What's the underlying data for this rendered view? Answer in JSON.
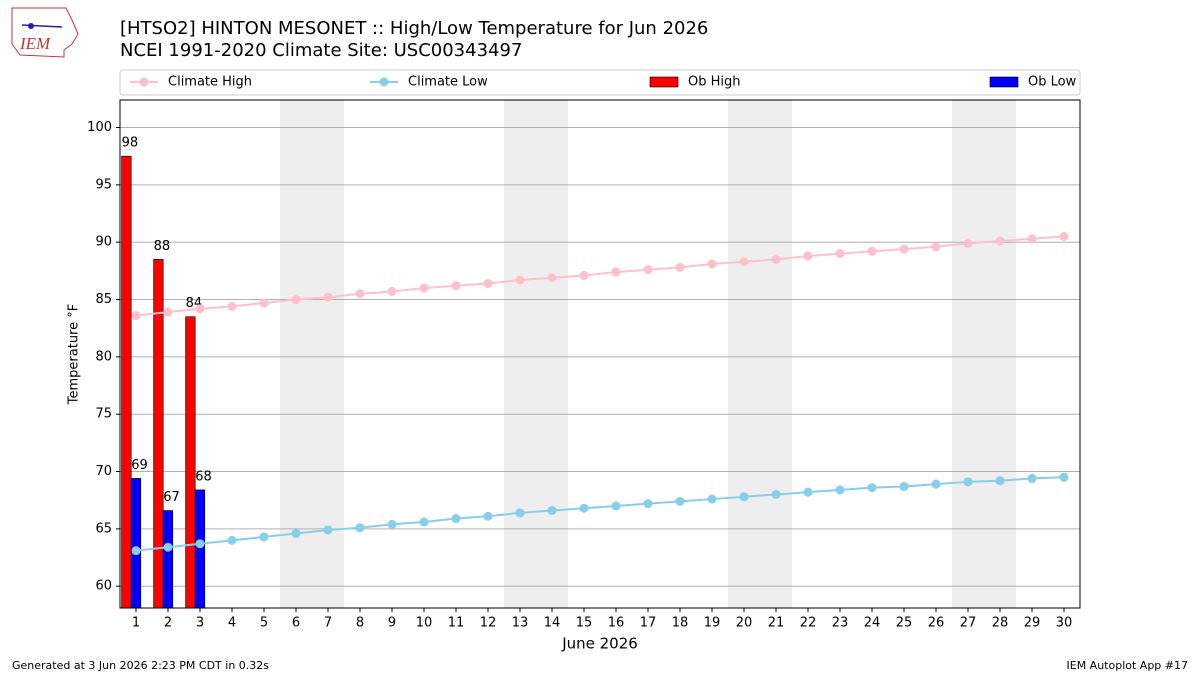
{
  "logo": "IEM",
  "footer_left": "Generated at 3 Jun 2026 2:23 PM CDT in 0.32s",
  "footer_right": "IEM Autoplot App #17",
  "chart_data": {
    "type": "bar",
    "title": "[HTSO2] HINTON MESONET :: High/Low Temperature for Jun 2026",
    "subtitle": "NCEI 1991-2020 Climate Site: USC00343497",
    "ylabel": "Temperature °F",
    "xlabel": "June 2026",
    "x": [
      1,
      2,
      3,
      4,
      5,
      6,
      7,
      8,
      9,
      10,
      11,
      12,
      13,
      14,
      15,
      16,
      17,
      18,
      19,
      20,
      21,
      22,
      23,
      24,
      25,
      26,
      27,
      28,
      29,
      30
    ],
    "xlim": [
      0.5,
      30.5
    ],
    "xticks": [
      1,
      2,
      3,
      4,
      5,
      6,
      7,
      8,
      9,
      10,
      11,
      12,
      13,
      14,
      15,
      16,
      17,
      18,
      19,
      20,
      21,
      22,
      23,
      24,
      25,
      26,
      27,
      28,
      29,
      30
    ],
    "ylim": [
      58.1,
      102.4
    ],
    "yticks": [
      60,
      65,
      70,
      75,
      80,
      85,
      90,
      95,
      100
    ],
    "grid": true,
    "legend": "top",
    "series": [
      {
        "name": "Climate High",
        "kind": "line",
        "color": "#ffc0cb",
        "values": [
          83.6,
          83.9,
          84.2,
          84.4,
          84.7,
          85.0,
          85.2,
          85.5,
          85.7,
          86.0,
          86.2,
          86.4,
          86.7,
          86.9,
          87.1,
          87.4,
          87.6,
          87.8,
          88.1,
          88.3,
          88.5,
          88.8,
          89.0,
          89.2,
          89.4,
          89.6,
          89.9,
          90.1,
          90.3,
          90.5
        ]
      },
      {
        "name": "Climate Low",
        "kind": "line",
        "color": "#87ceeb",
        "values": [
          63.1,
          63.4,
          63.7,
          64.0,
          64.3,
          64.6,
          64.9,
          65.1,
          65.4,
          65.6,
          65.9,
          66.1,
          66.4,
          66.6,
          66.8,
          67.0,
          67.2,
          67.4,
          67.6,
          67.8,
          68.0,
          68.2,
          68.4,
          68.6,
          68.7,
          68.9,
          69.1,
          69.2,
          69.4,
          69.5
        ]
      },
      {
        "name": "Ob High",
        "kind": "bar",
        "color": "#ff0000",
        "values": [
          97.5,
          88.5,
          83.5,
          null,
          null,
          null,
          null,
          null,
          null,
          null,
          null,
          null,
          null,
          null,
          null,
          null,
          null,
          null,
          null,
          null,
          null,
          null,
          null,
          null,
          null,
          null,
          null,
          null,
          null,
          null
        ],
        "value_labels": [
          "98",
          "88",
          "84",
          null,
          null,
          null,
          null,
          null,
          null,
          null,
          null,
          null,
          null,
          null,
          null,
          null,
          null,
          null,
          null,
          null,
          null,
          null,
          null,
          null,
          null,
          null,
          null,
          null,
          null,
          null
        ]
      },
      {
        "name": "Ob Low",
        "kind": "bar",
        "color": "#0000ff",
        "values": [
          69.4,
          66.6,
          68.4,
          null,
          null,
          null,
          null,
          null,
          null,
          null,
          null,
          null,
          null,
          null,
          null,
          null,
          null,
          null,
          null,
          null,
          null,
          null,
          null,
          null,
          null,
          null,
          null,
          null,
          null,
          null
        ],
        "value_labels": [
          "69",
          "67",
          "68",
          null,
          null,
          null,
          null,
          null,
          null,
          null,
          null,
          null,
          null,
          null,
          null,
          null,
          null,
          null,
          null,
          null,
          null,
          null,
          null,
          null,
          null,
          null,
          null,
          null,
          null,
          null
        ]
      }
    ]
  }
}
